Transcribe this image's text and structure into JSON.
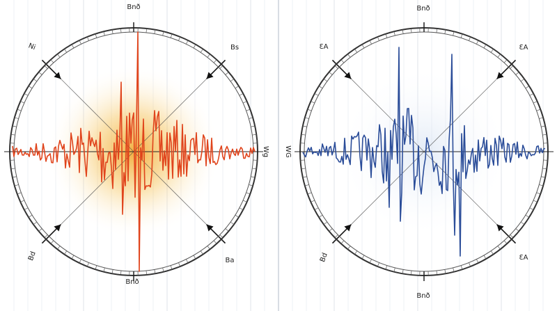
{
  "panels": [
    {
      "labels": {
        "top": "Bnð",
        "top_left": "Ni",
        "top_right": "Bs",
        "side": "Wg",
        "bottom_left": "Bd",
        "bottom_right": "Ba",
        "bottom": "Bnð"
      }
    },
    {
      "labels": {
        "top": "Bnð",
        "top_left": "ƐA",
        "top_right": "ƐA",
        "side": "WG",
        "bottom_left": "Bd",
        "bottom_right": "ƐA",
        "bottom": "Bnð"
      }
    }
  ]
}
